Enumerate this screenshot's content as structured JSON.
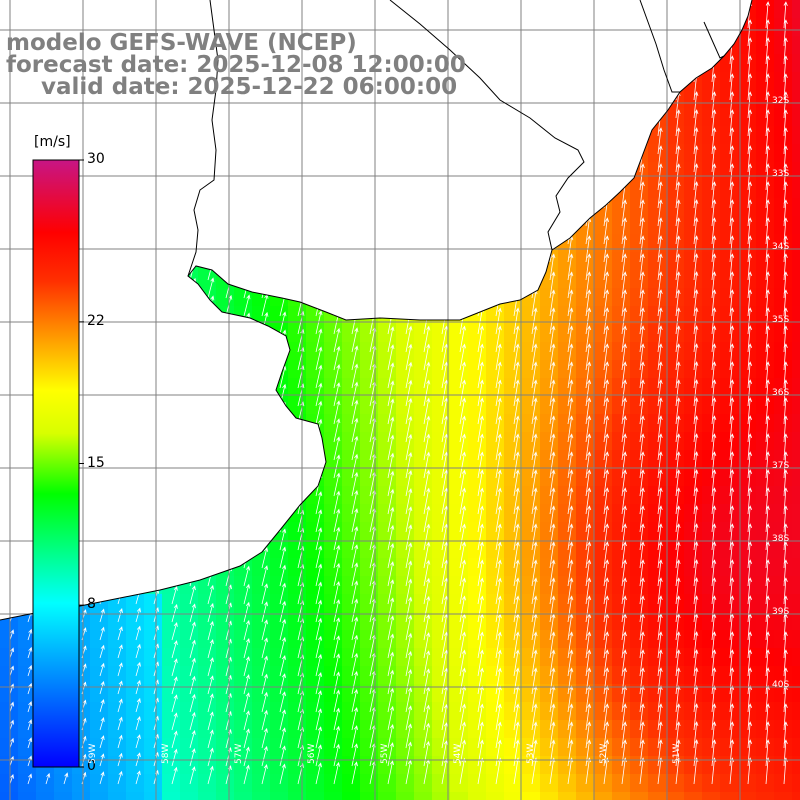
{
  "title": {
    "line1": "modelo GEFS-WAVE (NCEP)",
    "line2": "forecast date: 2025-12-08 12:00:00",
    "line3": "valid date: 2025-12-22 06:00:00"
  },
  "colorbar": {
    "unit": "[m/s]",
    "ticks": [
      {
        "value": 30,
        "label": "30"
      },
      {
        "value": 22,
        "label": "22"
      },
      {
        "value": 15,
        "label": "15"
      },
      {
        "value": 8,
        "label": "8"
      },
      {
        "value": 0,
        "label": "0"
      }
    ],
    "min": 0,
    "max": 30,
    "colors": [
      "#0000ff",
      "#00ffff",
      "#00ff00",
      "#ffff00",
      "#ff0000",
      "#c71585"
    ]
  },
  "grid": {
    "lat_labels": [
      "32S",
      "33S",
      "34S",
      "35S",
      "36S",
      "37S",
      "38S",
      "39S",
      "40S"
    ],
    "lon_labels": [
      "59W",
      "58W",
      "57W",
      "56W",
      "55W",
      "54W",
      "53W",
      "52W",
      "51W"
    ]
  },
  "field": {
    "variable": "wind speed",
    "wind_direction": "from south-southwest",
    "land_color": "#ffffff",
    "coastline_color": "#000000",
    "gridline_color": "#808080",
    "arrow_color": "#ffffff"
  }
}
